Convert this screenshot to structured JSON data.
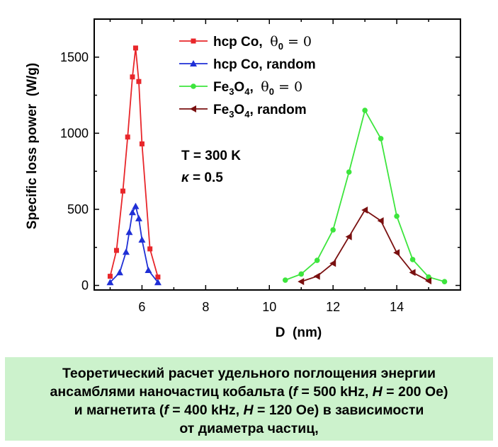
{
  "chart_data": {
    "type": "line",
    "xlabel": "D  (nm)",
    "ylabel": "Specific loss power  (W/g)",
    "xlim": [
      4.5,
      16
    ],
    "ylim": [
      -30,
      1750
    ],
    "xticks": [
      6,
      8,
      10,
      12,
      14
    ],
    "yticks": [
      0,
      500,
      1000,
      1500
    ],
    "series": [
      {
        "name_main": "hcp Co,  ",
        "name_theta": "θ",
        "name_sub": "0",
        "name_tail": " = 0",
        "color": "#e8262a",
        "marker": "square",
        "x": [
          5.0,
          5.2,
          5.4,
          5.55,
          5.7,
          5.8,
          5.9,
          6.0,
          6.25,
          6.5
        ],
        "y": [
          60,
          230,
          620,
          975,
          1370,
          1560,
          1340,
          930,
          240,
          55
        ]
      },
      {
        "name_main": "hcp Co, random",
        "color": "#1f2fd6",
        "marker": "triangle-up",
        "x": [
          5.0,
          5.3,
          5.5,
          5.6,
          5.7,
          5.8,
          5.9,
          6.0,
          6.2,
          6.5
        ],
        "y": [
          20,
          85,
          220,
          350,
          480,
          520,
          440,
          300,
          100,
          20
        ]
      },
      {
        "name_main": "Fe",
        "name_sub1": "3",
        "name_mid": "O",
        "name_sub2": "4",
        "name_tail": ",  θ",
        "name_sub3": "0",
        "name_end": " = 0",
        "color": "#3de53d",
        "marker": "circle",
        "x": [
          10.5,
          11.0,
          11.5,
          12.0,
          12.5,
          13.0,
          13.5,
          14.0,
          14.5,
          15.0,
          15.5
        ],
        "y": [
          35,
          75,
          165,
          365,
          745,
          1150,
          965,
          455,
          170,
          55,
          25
        ]
      },
      {
        "name_main": "Fe",
        "name_sub1": "3",
        "name_mid": "O",
        "name_sub2": "4",
        "name_tail": ", random",
        "color": "#7a1010",
        "marker": "triangle-left",
        "x": [
          11.0,
          11.5,
          12.0,
          12.5,
          13.0,
          13.5,
          14.0,
          14.5,
          15.0
        ],
        "y": [
          25,
          60,
          145,
          320,
          495,
          425,
          215,
          85,
          30
        ]
      }
    ],
    "annotations": {
      "temp": "T = 300 K",
      "kappa_sym": "κ",
      "kappa_val": "= 0.5"
    }
  },
  "caption": {
    "lines": [
      {
        "parts": [
          {
            "t": "Теоретический расчет удельного поглощения энергии"
          }
        ]
      },
      {
        "parts": [
          {
            "t": "ансамблями наночастиц кобальта ("
          },
          {
            "t": "f",
            "i": true
          },
          {
            "t": " = 500 kHz, "
          },
          {
            "t": "H",
            "i": true
          },
          {
            "t": " = 200 Oe)"
          }
        ]
      },
      {
        "parts": [
          {
            "t": "и магнетита ("
          },
          {
            "t": "f",
            "i": true
          },
          {
            "t": " = 400 kHz, "
          },
          {
            "t": "H",
            "i": true
          },
          {
            "t": " = 120 Oe) в зависимости"
          }
        ]
      },
      {
        "parts": [
          {
            "t": "от диаметра частиц,"
          }
        ]
      }
    ]
  }
}
